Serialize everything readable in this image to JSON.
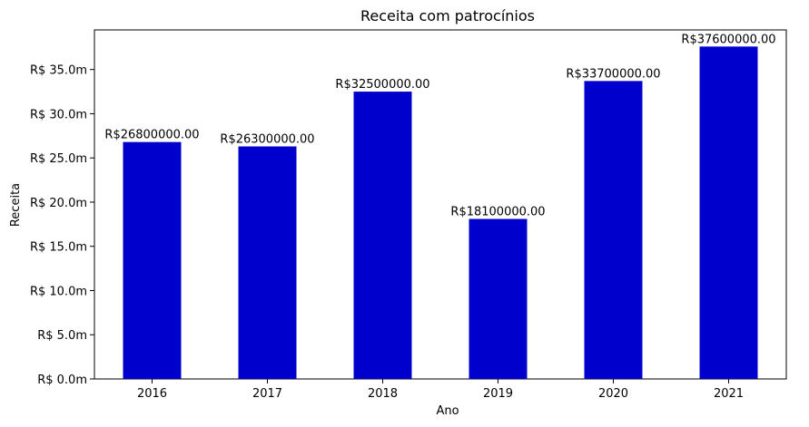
{
  "chart_data": {
    "type": "bar",
    "title": "Receita com patrocínios",
    "xlabel": "Ano",
    "ylabel": "Receita",
    "categories": [
      "2016",
      "2017",
      "2018",
      "2019",
      "2020",
      "2021"
    ],
    "values": [
      26800000,
      26300000,
      32500000,
      18100000,
      33700000,
      37600000
    ],
    "value_labels": [
      "R$26800000.00",
      "R$26300000.00",
      "R$32500000.00",
      "R$18100000.00",
      "R$33700000.00",
      "R$37600000.00"
    ],
    "ylim": [
      0,
      39480000
    ],
    "yticks": [
      0,
      5000000,
      10000000,
      15000000,
      20000000,
      25000000,
      30000000,
      35000000
    ],
    "ytick_labels": [
      "R$ 0.0m",
      "R$ 5.0m",
      "R$ 10.0m",
      "R$ 15.0m",
      "R$ 20.0m",
      "R$ 25.0m",
      "R$ 30.0m",
      "R$ 35.0m"
    ],
    "bar_color": "#0000cc",
    "grid": false,
    "legend": false
  }
}
